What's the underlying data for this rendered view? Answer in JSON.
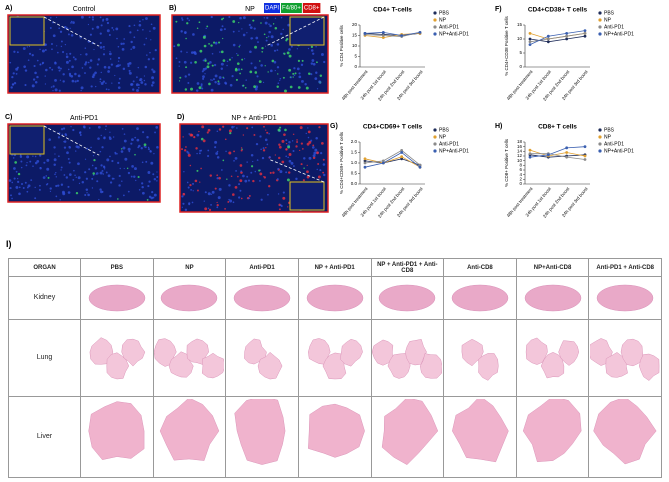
{
  "microscopy": {
    "legend": [
      "DAPI",
      "F4/80+",
      "CD8+"
    ],
    "panels": [
      {
        "label": "A)",
        "title": "Control"
      },
      {
        "label": "B)",
        "title": "NP"
      },
      {
        "label": "C)",
        "title": "Anti-PD1"
      },
      {
        "label": "D)",
        "title": "NP + Anti-PD1"
      }
    ]
  },
  "chart_data": [
    {
      "type": "line",
      "label": "E)",
      "title": "CD4+ T-cells",
      "y_label": "% CD4 Positive cells",
      "categories": [
        "48h post treatment",
        "24h post 1st boost",
        "24h post 2nd boost",
        "24h post 3rd boost"
      ],
      "ylim": [
        0,
        20
      ],
      "yticks": [
        0,
        5,
        10,
        15,
        20
      ],
      "series": [
        {
          "name": "PBS",
          "color": "#1f2d5a",
          "values": [
            16,
            15.5,
            15,
            16
          ]
        },
        {
          "name": "NP",
          "color": "#e0a030",
          "values": [
            15,
            14,
            15.5,
            16
          ]
        },
        {
          "name": "Anti-PD1",
          "color": "#8a8a8a",
          "values": [
            15.5,
            15,
            14.5,
            16.5
          ]
        },
        {
          "name": "NP+Anti-PD1",
          "color": "#3a5fb0",
          "values": [
            16,
            16.5,
            15,
            16.5
          ]
        }
      ]
    },
    {
      "type": "line",
      "label": "F)",
      "title": "CD4+CD38+ T cells",
      "y_label": "% CD4+CD38 Positive T cells",
      "categories": [
        "48h post treatment",
        "24h post 1st boost",
        "24h post 2nd boost",
        "24h post 3rd boost"
      ],
      "ylim": [
        0,
        15
      ],
      "yticks": [
        0,
        5,
        10,
        15
      ],
      "series": [
        {
          "name": "PBS",
          "color": "#1f2d5a",
          "values": [
            10,
            9,
            10,
            11
          ]
        },
        {
          "name": "NP",
          "color": "#e0a030",
          "values": [
            12,
            10,
            11,
            12
          ]
        },
        {
          "name": "Anti-PD1",
          "color": "#8a8a8a",
          "values": [
            9,
            10,
            11,
            12
          ]
        },
        {
          "name": "NP+Anti-PD1",
          "color": "#3a5fb0",
          "values": [
            8,
            11,
            12,
            13
          ]
        }
      ]
    },
    {
      "type": "line",
      "label": "G)",
      "title": "CD4+CD69+ T cells",
      "y_label": "% CD4+CD69+ Positive T cells",
      "categories": [
        "48h post treatment",
        "24h post 1st boost",
        "24h post 2nd boost",
        "24h post 3rd boost"
      ],
      "ylim": [
        0,
        2
      ],
      "yticks": [
        {
          "value": 0,
          "label": "0.0"
        },
        0.5,
        {
          "value": 1,
          "label": "1.0"
        },
        1.5,
        {
          "value": 2,
          "label": "2.0"
        }
      ],
      "series": [
        {
          "name": "PBS",
          "color": "#1f2d5a",
          "values": [
            1.1,
            1.0,
            1.2,
            0.9
          ]
        },
        {
          "name": "NP",
          "color": "#e0a030",
          "values": [
            1.2,
            1.0,
            1.3,
            0.8
          ]
        },
        {
          "name": "Anti-PD1",
          "color": "#8a8a8a",
          "values": [
            1.0,
            1.1,
            1.6,
            0.9
          ]
        },
        {
          "name": "NP+Anti-PD1",
          "color": "#3a5fb0",
          "values": [
            0.8,
            1.0,
            1.5,
            0.8
          ]
        }
      ]
    },
    {
      "type": "line",
      "label": "H)",
      "title": "CD8+ T cells",
      "y_label": "% CD8+ Positive T cells",
      "categories": [
        "48h post treatment",
        "24h post 1st boost",
        "24h post 2nd boost",
        "24h post 3rd boost"
      ],
      "ylim": [
        0,
        18
      ],
      "yticks": [
        0,
        2,
        4,
        6,
        8,
        10,
        12,
        14,
        16,
        18
      ],
      "series": [
        {
          "name": "PBS",
          "color": "#1f2d5a",
          "values": [
            12.5,
            11.5,
            12,
            12.5
          ]
        },
        {
          "name": "NP",
          "color": "#e0a030",
          "values": [
            14.5,
            12,
            13.5,
            12
          ]
        },
        {
          "name": "Anti-PD1",
          "color": "#8a8a8a",
          "values": [
            13,
            13,
            11.5,
            10.5
          ]
        },
        {
          "name": "NP+Anti-PD1",
          "color": "#3a5fb0",
          "values": [
            11.5,
            12.5,
            15.5,
            16
          ]
        }
      ]
    }
  ],
  "table": {
    "label": "I)",
    "header": [
      "ORGAN",
      "PBS",
      "NP",
      "Anti-PD1",
      "NP + Anti-PD1",
      "NP + Anti-PD1 + Anti-CD8",
      "Anti-CD8",
      "NP+Anti-CD8",
      "Anti-PD1 + Anti-CD8"
    ],
    "rows": [
      "Kidney",
      "Lung",
      "Liver"
    ]
  }
}
